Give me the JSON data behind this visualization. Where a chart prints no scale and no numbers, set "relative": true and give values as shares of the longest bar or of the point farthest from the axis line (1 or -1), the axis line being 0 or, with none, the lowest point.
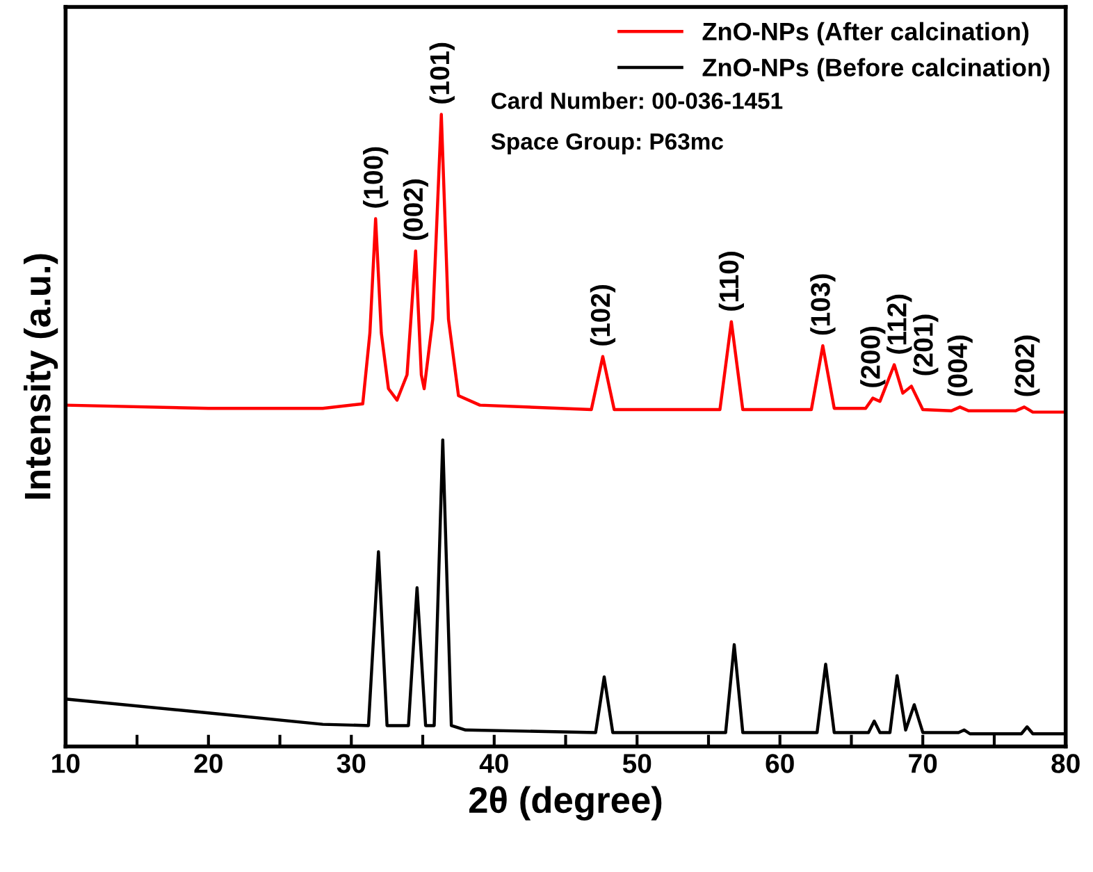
{
  "chart_data": {
    "type": "line",
    "relative": true,
    "xlabel": "2θ (degree)",
    "ylabel": "Intensity (a.u.)",
    "xlim": [
      10,
      80
    ],
    "xticks": [
      10,
      {
        "value": 15,
        "label": null
      },
      20,
      {
        "value": 25,
        "label": null
      },
      30,
      {
        "value": 35,
        "label": null
      },
      40,
      {
        "value": 45,
        "label": null
      },
      50,
      {
        "value": 55,
        "label": null
      },
      60,
      {
        "value": 65,
        "label": null
      },
      70,
      {
        "value": 75,
        "label": null
      },
      80
    ],
    "legend": "top right",
    "grid": false,
    "marker": "none",
    "line_style": "solid",
    "series": [
      {
        "name": "ZnO-NPs (After calcination)",
        "color": "#ff0000",
        "x": [
          10,
          20,
          28,
          30.8,
          31.3,
          31.7,
          32.1,
          32.6,
          33.2,
          33.9,
          34.5,
          34.9,
          35.1,
          35.7,
          36.3,
          36.8,
          37.5,
          39,
          46.8,
          47.6,
          48.4,
          55.8,
          56.6,
          57.4,
          62.2,
          63.0,
          63.8,
          66.0,
          66.5,
          67.0,
          68.0,
          68.6,
          69.2,
          70.0,
          72.0,
          72.6,
          73.2,
          76.5,
          77.1,
          77.7,
          80
        ],
        "values": [
          0.54,
          0.535,
          0.535,
          0.542,
          0.654,
          0.835,
          0.654,
          0.566,
          0.548,
          0.588,
          0.784,
          0.588,
          0.566,
          0.676,
          1.0,
          0.676,
          0.555,
          0.54,
          0.533,
          0.617,
          0.533,
          0.533,
          0.672,
          0.533,
          0.533,
          0.634,
          0.535,
          0.535,
          0.551,
          0.546,
          0.604,
          0.559,
          0.57,
          0.533,
          0.531,
          0.537,
          0.531,
          0.531,
          0.537,
          0.529,
          0.529
        ]
      },
      {
        "name": "ZnO-NPs (Before calcination)",
        "color": "#000000",
        "x": [
          10,
          20,
          28,
          31.2,
          31.9,
          32.5,
          34.0,
          34.6,
          35.2,
          35.8,
          36.4,
          37.0,
          38,
          47.1,
          47.7,
          48.3,
          56.2,
          56.8,
          57.4,
          62.6,
          63.2,
          63.8,
          66.2,
          66.6,
          67.0,
          67.7,
          68.2,
          68.8,
          69.4,
          70.0,
          72.5,
          72.9,
          73.3,
          76.9,
          77.3,
          77.7,
          80
        ],
        "values": [
          0.075,
          0.053,
          0.035,
          0.033,
          0.308,
          0.033,
          0.033,
          0.251,
          0.033,
          0.033,
          0.485,
          0.033,
          0.026,
          0.022,
          0.11,
          0.022,
          0.022,
          0.161,
          0.022,
          0.022,
          0.13,
          0.022,
          0.022,
          0.04,
          0.022,
          0.022,
          0.112,
          0.026,
          0.066,
          0.022,
          0.022,
          0.026,
          0.02,
          0.02,
          0.031,
          0.02,
          0.02
        ]
      }
    ],
    "annotations": [
      {
        "text": "(100)",
        "x": 31.7,
        "y": 0.835
      },
      {
        "text": "(002)",
        "x": 34.5,
        "y": 0.784
      },
      {
        "text": "(101)",
        "x": 36.3,
        "y": 1.0
      },
      {
        "text": "(102)",
        "x": 47.6,
        "y": 0.617
      },
      {
        "text": "(110)",
        "x": 56.6,
        "y": 0.672
      },
      {
        "text": "(103)",
        "x": 63.0,
        "y": 0.634
      },
      {
        "text": "(200)",
        "x": 66.5,
        "y": 0.551
      },
      {
        "text": "(112)",
        "x": 68.0,
        "y": 0.604
      },
      {
        "text": "(201)",
        "x": 69.2,
        "y": 0.57
      },
      {
        "text": "(004)",
        "x": 72.6,
        "y": 0.537
      },
      {
        "text": "(202)",
        "x": 77.3,
        "y": 0.537
      },
      "Card Number: 00-036-1451",
      "Space Group: P63mc"
    ]
  }
}
